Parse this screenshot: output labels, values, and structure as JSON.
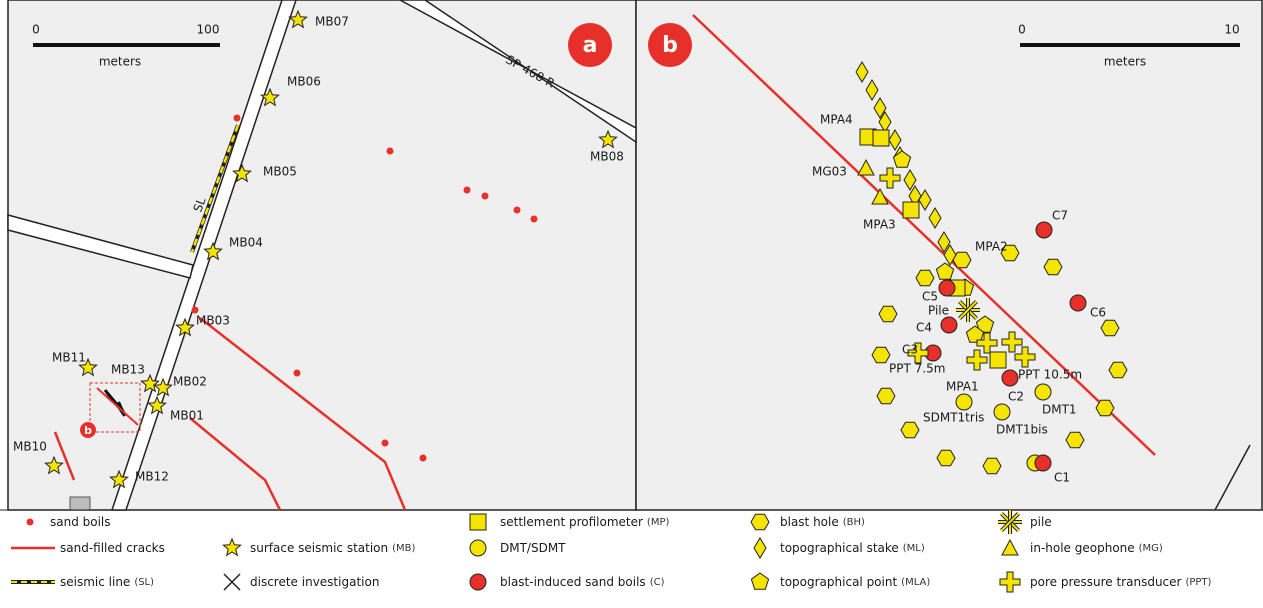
{
  "panel_a": {
    "badge": "a",
    "scale": {
      "start": "0",
      "end": "100",
      "unit": "meters"
    },
    "road_label": "SP 468 R",
    "line_label": "SL",
    "marker": "b",
    "stations": [
      "MB07",
      "MB06",
      "MB05",
      "MB04",
      "MB03",
      "MB02",
      "MB01",
      "MB13",
      "MB11",
      "MB10",
      "MB12",
      "MB08"
    ]
  },
  "panel_b": {
    "badge": "b",
    "scale": {
      "start": "0",
      "end": "10",
      "unit": "meters"
    },
    "labels": [
      "MPA4",
      "MG03",
      "MPA3",
      "MPA2",
      "C7",
      "C5",
      "Pile",
      "C4",
      "C6",
      "C3",
      "PPT 7.5m",
      "PPT 10.5m",
      "MPA1",
      "C2",
      "DMT1",
      "SDMT1tris",
      "DMT1bis",
      "C1"
    ]
  },
  "legend": [
    {
      "label": "sand boils"
    },
    {
      "label": "sand-filled cracks"
    },
    {
      "label": "seismic line",
      "code": "(SL)"
    },
    {
      "label": "surface seismic station",
      "code": "(MB)"
    },
    {
      "label": "discrete investigation"
    },
    {
      "label": "settlement profilometer",
      "code": "(MP)"
    },
    {
      "label": "DMT/SDMT"
    },
    {
      "label": "blast-induced sand boils",
      "code": "(C)"
    },
    {
      "label": "blast hole",
      "code": "(BH)"
    },
    {
      "label": "topographical stake",
      "code": "(ML)"
    },
    {
      "label": "topographical point",
      "code": "(MLA)"
    },
    {
      "label": "pile"
    },
    {
      "label": "in-hole geophone",
      "code": "(MG)"
    },
    {
      "label": "pore pressure transducer",
      "code": "(PPT)"
    }
  ]
}
